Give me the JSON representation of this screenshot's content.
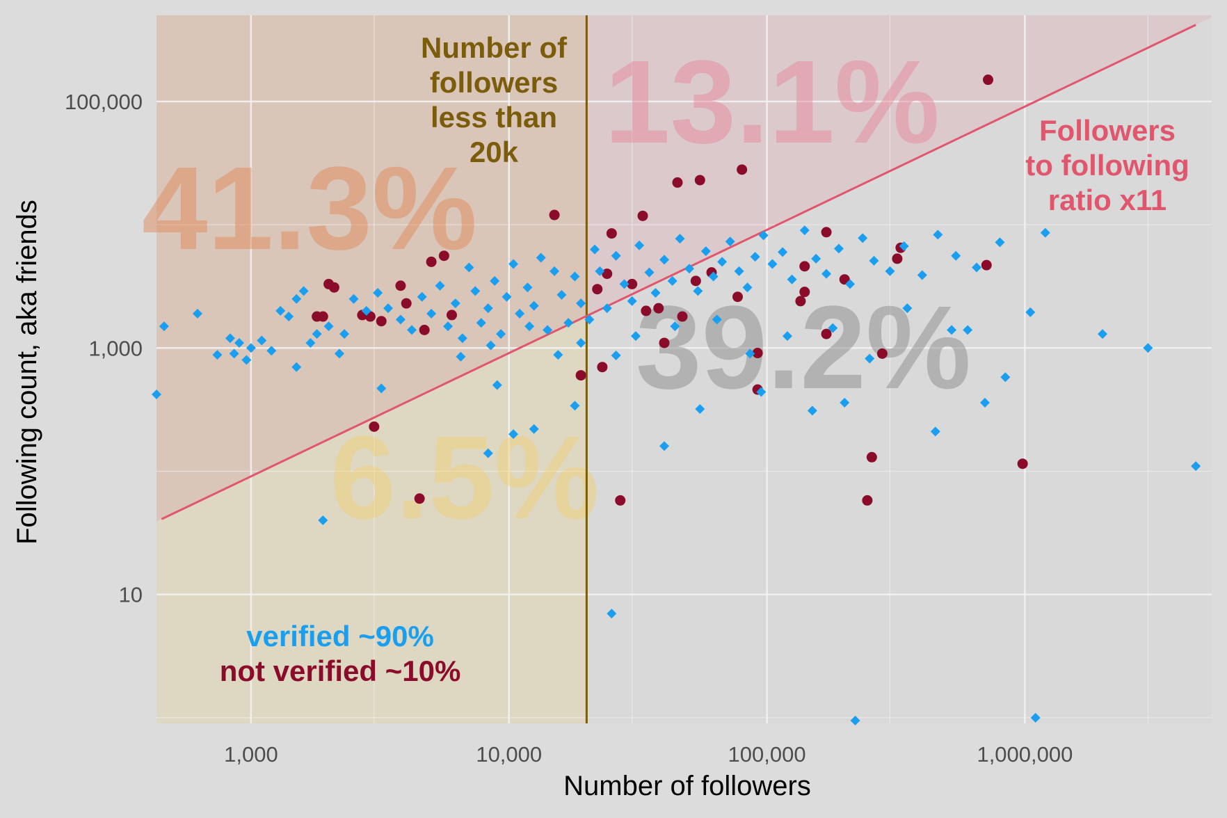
{
  "chart_data": {
    "type": "scatter",
    "x_scale": "log",
    "y_scale": "log",
    "xlabel": "Number of followers",
    "ylabel": "Following count, aka friends",
    "xlim": [
      430,
      5300000
    ],
    "ylim": [
      0.9,
      500000
    ],
    "x_ticks": [
      {
        "value": 1000,
        "label": "1,000"
      },
      {
        "value": 10000,
        "label": "10,000"
      },
      {
        "value": 100000,
        "label": "100,000"
      },
      {
        "value": 1000000,
        "label": "1,000,000"
      }
    ],
    "y_ticks": [
      {
        "value": 10,
        "label": "10"
      },
      {
        "value": 1000,
        "label": "1,000"
      },
      {
        "value": 100000,
        "label": "100,000"
      }
    ],
    "threshold_x": 20000,
    "ratio_line": {
      "ratio": 11,
      "x_range": [
        450,
        4600000
      ]
    },
    "regions": [
      {
        "name": "upper-left",
        "label": "41.3%",
        "color": "#e08a5c"
      },
      {
        "name": "upper-right",
        "label": "13.1%",
        "color": "#e58a9c"
      },
      {
        "name": "lower-left",
        "label": "6.5%",
        "color": "#f0d27a"
      },
      {
        "name": "lower-right",
        "label": "39.2%",
        "color": "#8c8c8c"
      }
    ],
    "annotations": {
      "threshold_lines": [
        "Number of",
        "followers",
        "less than",
        "20k"
      ],
      "ratio_lines": [
        "Followers",
        "to following",
        "ratio x11"
      ],
      "legend_verified": "verified ~90%",
      "legend_not_verified": "not verified ~10%"
    },
    "colors": {
      "verified": "#1a9ff0",
      "not_verified": "#8b0b2a",
      "threshold": "#7a5c0a",
      "ratio_line": "#e0566c",
      "grid_major": "#f2f2f2"
    },
    "series": [
      {
        "name": "not verified",
        "marker": "circle",
        "points": [
          [
            2000,
            3300
          ],
          [
            2700,
            1850
          ],
          [
            1800,
            1800
          ],
          [
            3200,
            1650
          ],
          [
            1900,
            1800
          ],
          [
            2900,
            1800
          ],
          [
            4000,
            2300
          ],
          [
            3800,
            3200
          ],
          [
            5600,
            5600
          ],
          [
            5000,
            5000
          ],
          [
            4700,
            1400
          ],
          [
            6000,
            1850
          ],
          [
            2100,
            3100
          ],
          [
            3000,
            230
          ],
          [
            4500,
            60
          ],
          [
            15000,
            12000
          ],
          [
            19000,
            600
          ],
          [
            22000,
            3000
          ],
          [
            23000,
            700
          ],
          [
            24000,
            4000
          ],
          [
            25000,
            8500
          ],
          [
            27000,
            58
          ],
          [
            30000,
            3300
          ],
          [
            33000,
            11800
          ],
          [
            34000,
            2000
          ],
          [
            38000,
            2100
          ],
          [
            40000,
            1100
          ],
          [
            45000,
            22000
          ],
          [
            47000,
            1800
          ],
          [
            53000,
            3500
          ],
          [
            55000,
            23000
          ],
          [
            61000,
            4100
          ],
          [
            77000,
            2600
          ],
          [
            80000,
            28000
          ],
          [
            92000,
            910
          ],
          [
            92000,
            460
          ],
          [
            140000,
            4600
          ],
          [
            135000,
            2400
          ],
          [
            140000,
            2850
          ],
          [
            170000,
            1300
          ],
          [
            170000,
            8700
          ],
          [
            200000,
            3600
          ],
          [
            255000,
            130
          ],
          [
            245000,
            58
          ],
          [
            280000,
            900
          ],
          [
            320000,
            5300
          ],
          [
            330000,
            6500
          ],
          [
            720000,
            150000
          ],
          [
            710000,
            4700
          ],
          [
            980000,
            115
          ]
        ]
      },
      {
        "name": "verified",
        "marker": "diamond",
        "points": [
          [
            430,
            420
          ],
          [
            460,
            1500
          ],
          [
            620,
            1900
          ],
          [
            740,
            880
          ],
          [
            830,
            1200
          ],
          [
            860,
            900
          ],
          [
            900,
            1100
          ],
          [
            960,
            800
          ],
          [
            1000,
            1000
          ],
          [
            1100,
            1150
          ],
          [
            1200,
            950
          ],
          [
            1300,
            2000
          ],
          [
            1400,
            1800
          ],
          [
            1500,
            2500
          ],
          [
            1600,
            2900
          ],
          [
            1700,
            1100
          ],
          [
            1800,
            1300
          ],
          [
            2000,
            1500
          ],
          [
            2200,
            900
          ],
          [
            2500,
            2500
          ],
          [
            2800,
            2000
          ],
          [
            3100,
            2800
          ],
          [
            3400,
            2100
          ],
          [
            3800,
            1700
          ],
          [
            4200,
            1400
          ],
          [
            4600,
            2600
          ],
          [
            5000,
            1900
          ],
          [
            5400,
            3200
          ],
          [
            5800,
            1500
          ],
          [
            6200,
            2300
          ],
          [
            6600,
            1200
          ],
          [
            7000,
            4500
          ],
          [
            7400,
            2900
          ],
          [
            7800,
            1600
          ],
          [
            8300,
            2100
          ],
          [
            8800,
            3500
          ],
          [
            9300,
            1300
          ],
          [
            9800,
            2600
          ],
          [
            10400,
            4800
          ],
          [
            11000,
            1900
          ],
          [
            11800,
            3100
          ],
          [
            12500,
            2200
          ],
          [
            13300,
            5400
          ],
          [
            14100,
            1400
          ],
          [
            15000,
            4200
          ],
          [
            16000,
            2700
          ],
          [
            17000,
            1600
          ],
          [
            18000,
            3800
          ],
          [
            19000,
            2300
          ],
          [
            20500,
            1700
          ],
          [
            21500,
            6300
          ],
          [
            22500,
            4200
          ],
          [
            24000,
            2100
          ],
          [
            26000,
            5600
          ],
          [
            28000,
            3300
          ],
          [
            30000,
            2400
          ],
          [
            32000,
            6800
          ],
          [
            35000,
            4100
          ],
          [
            37000,
            2800
          ],
          [
            40000,
            5200
          ],
          [
            43000,
            3500
          ],
          [
            46000,
            7700
          ],
          [
            50000,
            4400
          ],
          [
            54000,
            2900
          ],
          [
            58000,
            6100
          ],
          [
            62000,
            3800
          ],
          [
            67000,
            5000
          ],
          [
            72000,
            7300
          ],
          [
            78000,
            4200
          ],
          [
            84000,
            3100
          ],
          [
            90000,
            5500
          ],
          [
            97000,
            8200
          ],
          [
            105000,
            4800
          ],
          [
            115000,
            6000
          ],
          [
            125000,
            3600
          ],
          [
            140000,
            9000
          ],
          [
            155000,
            5300
          ],
          [
            170000,
            4000
          ],
          [
            190000,
            6400
          ],
          [
            210000,
            3300
          ],
          [
            235000,
            7800
          ],
          [
            260000,
            5100
          ],
          [
            300000,
            4200
          ],
          [
            340000,
            6700
          ],
          [
            400000,
            3900
          ],
          [
            460000,
            8300
          ],
          [
            540000,
            5600
          ],
          [
            650000,
            4500
          ],
          [
            800000,
            7200
          ],
          [
            1050000,
            1950
          ],
          [
            1200000,
            8600
          ],
          [
            2000000,
            1300
          ],
          [
            3000000,
            1000
          ],
          [
            4600000,
            110
          ],
          [
            220000,
            0.95
          ],
          [
            1100000,
            1.0
          ],
          [
            25000,
            7
          ],
          [
            19000,
            1100
          ],
          [
            15500,
            880
          ],
          [
            12000,
            1500
          ],
          [
            8500,
            1050
          ],
          [
            6500,
            850
          ],
          [
            2300,
            1300
          ],
          [
            1500,
            700
          ],
          [
            3200,
            470
          ],
          [
            9000,
            500
          ],
          [
            12500,
            220
          ],
          [
            18000,
            340
          ],
          [
            40000,
            160
          ],
          [
            55000,
            320
          ],
          [
            95000,
            440
          ],
          [
            150000,
            310
          ],
          [
            200000,
            360
          ],
          [
            450000,
            210
          ],
          [
            600000,
            1400
          ],
          [
            700000,
            360
          ],
          [
            840000,
            580
          ],
          [
            1900,
            40
          ],
          [
            8300,
            140
          ],
          [
            10400,
            200
          ],
          [
            26000,
            870
          ],
          [
            31000,
            1250
          ],
          [
            44000,
            1500
          ],
          [
            64000,
            1700
          ],
          [
            86000,
            900
          ],
          [
            120000,
            1250
          ],
          [
            180000,
            1450
          ],
          [
            250000,
            820
          ],
          [
            350000,
            2100
          ],
          [
            520000,
            1400
          ]
        ]
      }
    ]
  }
}
